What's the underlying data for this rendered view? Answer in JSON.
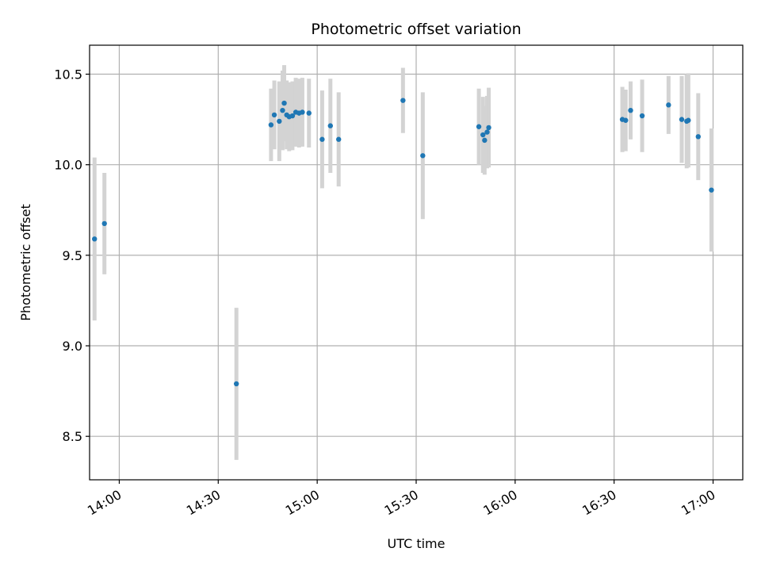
{
  "chart_data": {
    "type": "scatter",
    "title": "Photometric offset variation",
    "xlabel": "UTC time",
    "ylabel": "Photometric offset",
    "x_tick_labels": [
      "14:00",
      "14:30",
      "15:00",
      "15:30",
      "16:00",
      "16:30",
      "17:00"
    ],
    "x_ticks": [
      "14:00",
      "14:30",
      "15:00",
      "15:30",
      "16:00",
      "16:30",
      "17:00"
    ],
    "y_ticks": [
      8.5,
      9.0,
      9.5,
      10.0,
      10.5
    ],
    "y_tick_labels": [
      "8.5",
      "9.0",
      "9.5",
      "10.0",
      "10.5"
    ],
    "xlim": [
      "13:51",
      "17:09"
    ],
    "ylim": [
      8.26,
      10.66
    ],
    "grid": true,
    "legend": false,
    "point_color": "#1f77b4",
    "errorbar_color": "#d3d3d3",
    "series": [
      {
        "points": [
          {
            "x": "13:52:30",
            "y": 9.59,
            "yerr": 0.45
          },
          {
            "x": "13:55:30",
            "y": 9.675,
            "yerr": 0.28
          },
          {
            "x": "14:35:30",
            "y": 8.79,
            "yerr": 0.42
          },
          {
            "x": "14:46:00",
            "y": 10.22,
            "yerr": 0.2
          },
          {
            "x": "14:47:00",
            "y": 10.275,
            "yerr": 0.19
          },
          {
            "x": "14:48:30",
            "y": 10.24,
            "yerr": 0.22
          },
          {
            "x": "14:49:30",
            "y": 10.3,
            "yerr": 0.22
          },
          {
            "x": "14:50:00",
            "y": 10.34,
            "yerr": 0.21
          },
          {
            "x": "14:50:45",
            "y": 10.275,
            "yerr": 0.19
          },
          {
            "x": "14:51:30",
            "y": 10.265,
            "yerr": 0.19
          },
          {
            "x": "14:52:30",
            "y": 10.27,
            "yerr": 0.19
          },
          {
            "x": "14:53:30",
            "y": 10.29,
            "yerr": 0.19
          },
          {
            "x": "14:54:30",
            "y": 10.285,
            "yerr": 0.19
          },
          {
            "x": "14:55:30",
            "y": 10.29,
            "yerr": 0.19
          },
          {
            "x": "14:57:30",
            "y": 10.285,
            "yerr": 0.19
          },
          {
            "x": "15:01:30",
            "y": 10.14,
            "yerr": 0.27
          },
          {
            "x": "15:04:00",
            "y": 10.215,
            "yerr": 0.26
          },
          {
            "x": "15:06:30",
            "y": 10.14,
            "yerr": 0.26
          },
          {
            "x": "15:26:00",
            "y": 10.355,
            "yerr": 0.18
          },
          {
            "x": "15:32:00",
            "y": 10.05,
            "yerr": 0.35
          },
          {
            "x": "15:49:00",
            "y": 10.21,
            "yerr": 0.21
          },
          {
            "x": "15:50:15",
            "y": 10.165,
            "yerr": 0.21
          },
          {
            "x": "15:50:45",
            "y": 10.135,
            "yerr": 0.19
          },
          {
            "x": "15:51:30",
            "y": 10.18,
            "yerr": 0.2
          },
          {
            "x": "15:52:00",
            "y": 10.205,
            "yerr": 0.22
          },
          {
            "x": "16:32:30",
            "y": 10.25,
            "yerr": 0.18
          },
          {
            "x": "16:33:30",
            "y": 10.245,
            "yerr": 0.17
          },
          {
            "x": "16:35:00",
            "y": 10.3,
            "yerr": 0.16
          },
          {
            "x": "16:38:30",
            "y": 10.27,
            "yerr": 0.2
          },
          {
            "x": "16:46:30",
            "y": 10.33,
            "yerr": 0.16
          },
          {
            "x": "16:50:30",
            "y": 10.25,
            "yerr": 0.24
          },
          {
            "x": "16:52:00",
            "y": 10.24,
            "yerr": 0.26
          },
          {
            "x": "16:52:30",
            "y": 10.245,
            "yerr": 0.26
          },
          {
            "x": "16:55:30",
            "y": 10.155,
            "yerr": 0.24
          },
          {
            "x": "16:59:30",
            "y": 9.86,
            "yerr": 0.34
          }
        ]
      }
    ]
  }
}
